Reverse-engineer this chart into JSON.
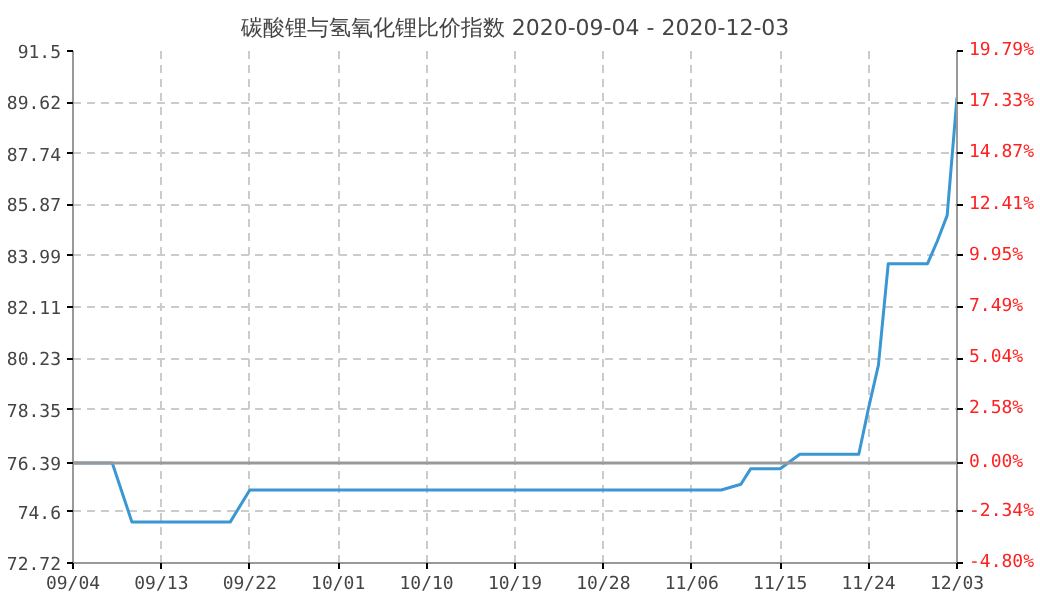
{
  "chart_data": {
    "type": "line",
    "title": "碳酸锂与氢氧化锂比价指数 2020-09-04 - 2020-12-03",
    "x": [
      "2020-09-04",
      "2020-09-08",
      "2020-09-10",
      "2020-09-20",
      "2020-09-22",
      "2020-11-09",
      "2020-11-11",
      "2020-11-12",
      "2020-11-15",
      "2020-11-17",
      "2020-11-23",
      "2020-11-24",
      "2020-11-25",
      "2020-11-26",
      "2020-11-30",
      "2020-12-01",
      "2020-12-02",
      "2020-12-03"
    ],
    "series": [
      {
        "color": "#3a97d4",
        "values": [
          76.39,
          76.39,
          74.22,
          74.22,
          75.4,
          75.4,
          75.61,
          76.18,
          76.18,
          76.71,
          76.71,
          78.41,
          79.98,
          83.7,
          83.7,
          84.53,
          85.47,
          89.8
        ]
      }
    ],
    "xlim": [
      "2020-09-04",
      "2020-12-03"
    ],
    "xticks": [
      {
        "value": "2020-09-04",
        "label": "09/04"
      },
      {
        "value": "2020-09-13",
        "label": "09/13"
      },
      {
        "value": "2020-09-22",
        "label": "09/22"
      },
      {
        "value": "2020-10-01",
        "label": "10/01"
      },
      {
        "value": "2020-10-10",
        "label": "10/10"
      },
      {
        "value": "2020-10-19",
        "label": "10/19"
      },
      {
        "value": "2020-10-28",
        "label": "10/28"
      },
      {
        "value": "2020-11-06",
        "label": "11/06"
      },
      {
        "value": "2020-11-15",
        "label": "11/15"
      },
      {
        "value": "2020-11-24",
        "label": "11/24"
      },
      {
        "value": "2020-12-03",
        "label": "12/03"
      }
    ],
    "ylim": [
      72.72,
      91.5
    ],
    "yticks": [
      72.72,
      74.6,
      76.39,
      78.35,
      80.23,
      82.11,
      83.99,
      85.87,
      87.74,
      89.62,
      91.5
    ],
    "y2lim": [
      -4.8,
      19.79
    ],
    "y2ticks": [
      {
        "value": -4.8,
        "label": "-4.80%"
      },
      {
        "value": -2.34,
        "label": "-2.34%"
      },
      {
        "value": 0,
        "label": "0.00%"
      },
      {
        "value": 2.58,
        "label": "2.58%"
      },
      {
        "value": 5.04,
        "label": "5.04%"
      },
      {
        "value": 7.49,
        "label": "7.49%"
      },
      {
        "value": 9.95,
        "label": "9.95%"
      },
      {
        "value": 12.41,
        "label": "12.41%"
      },
      {
        "value": 14.87,
        "label": "14.87%"
      },
      {
        "value": 17.33,
        "label": "17.33%"
      },
      {
        "value": 19.79,
        "label": "19.79%"
      }
    ],
    "ref_lines": [
      {
        "axis": "y",
        "value": 76.39,
        "color": "#999999"
      }
    ],
    "grid": true,
    "marker": "none",
    "line_style": "solid"
  }
}
